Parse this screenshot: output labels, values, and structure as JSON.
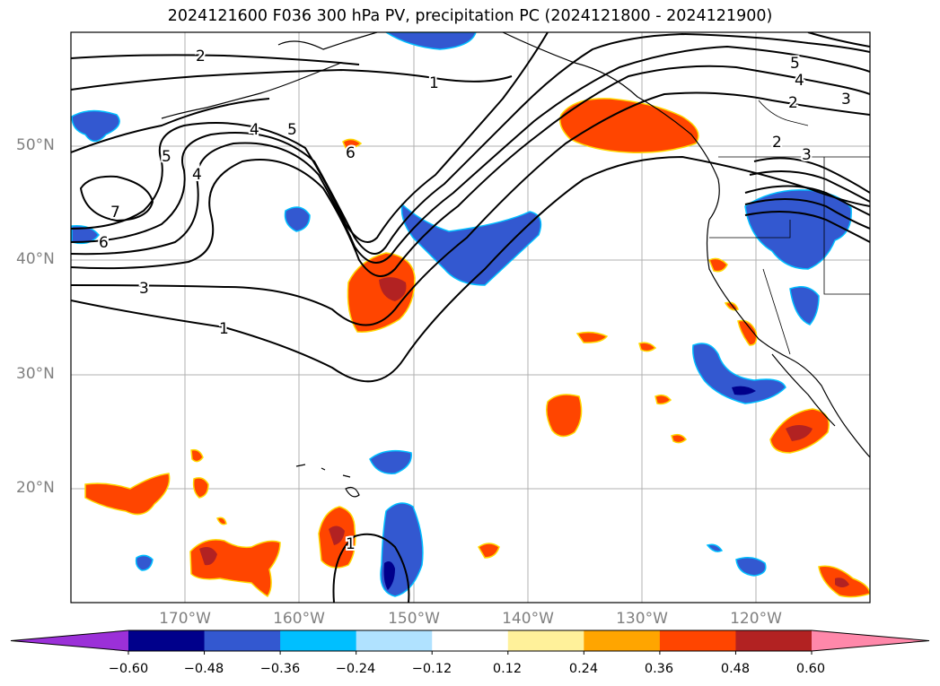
{
  "title": "2024121600 F036 300 hPa PV, precipitation PC (2024121800 - 2024121900)",
  "lat_labels": [
    "50°N",
    "40°N",
    "30°N",
    "20°N"
  ],
  "lon_labels": [
    "170°W",
    "160°W",
    "150°W",
    "140°W",
    "130°W",
    "120°W"
  ],
  "pv_contour_labels": [
    "2",
    "1",
    "4",
    "5",
    "6",
    "7",
    "6",
    "5",
    "4",
    "3",
    "2",
    "3",
    "5",
    "4",
    "3",
    "2",
    "1",
    "1"
  ],
  "colorbar": {
    "tick_labels": [
      "−0.60",
      "−0.48",
      "−0.36",
      "−0.24",
      "−0.12",
      "0.12",
      "0.24",
      "0.36",
      "0.48",
      "0.60"
    ],
    "colors": [
      "#9b30d8",
      "#00008b",
      "#3358d0",
      "#00bfff",
      "#b0e2ff",
      "#ffffff",
      "#fff19a",
      "#ffa500",
      "#ff4500",
      "#b22222",
      "#ff88aa"
    ]
  }
}
